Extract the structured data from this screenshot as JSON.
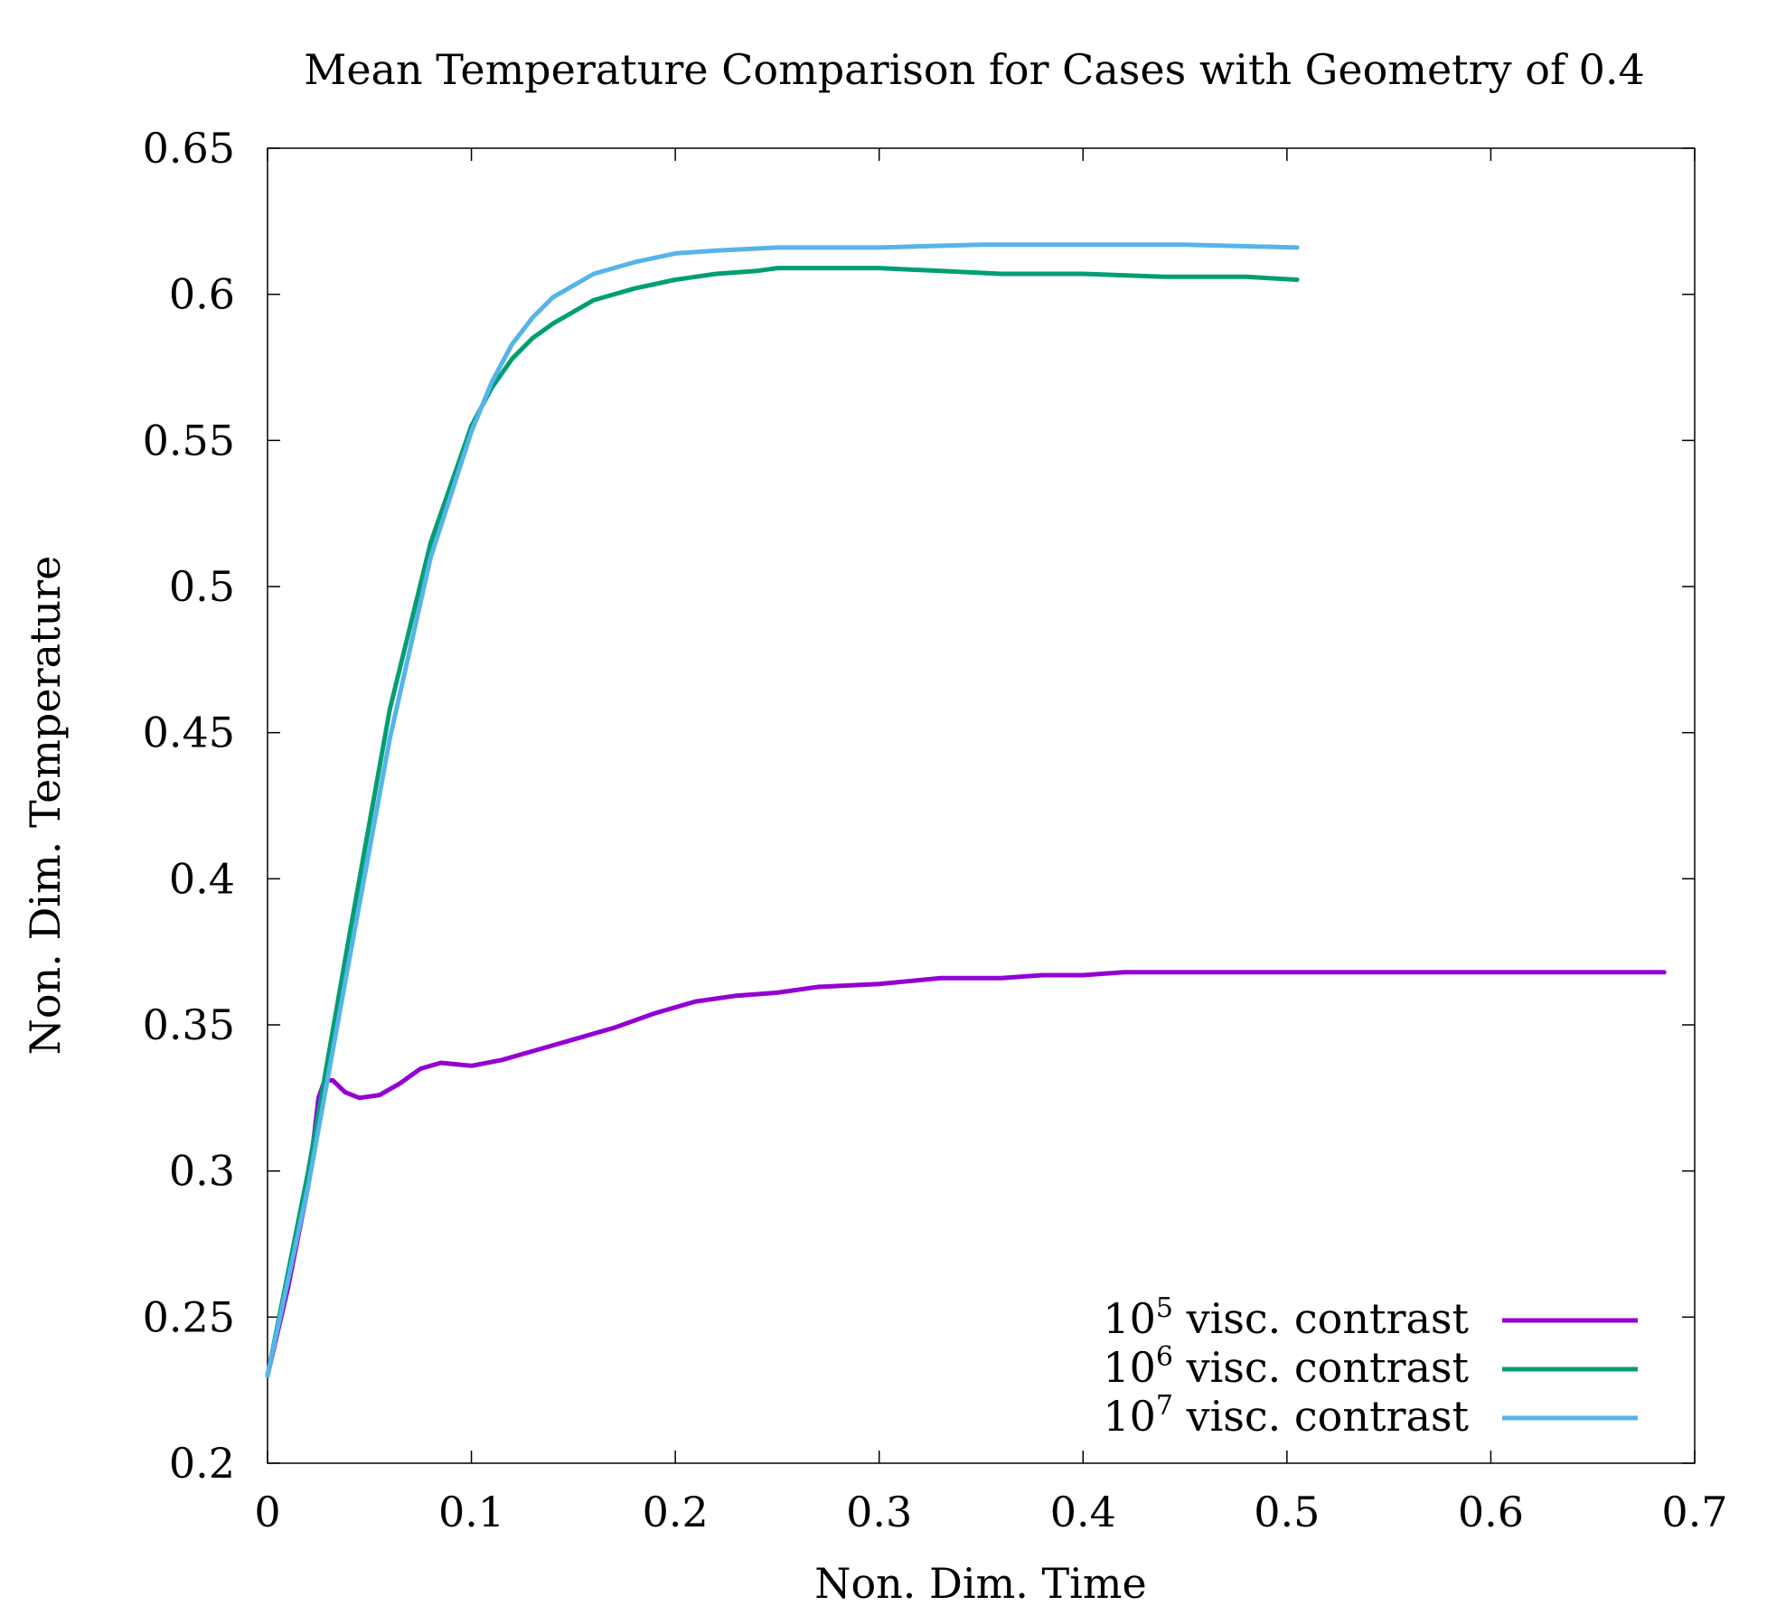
{
  "chart_data": {
    "type": "line",
    "title": "Mean Temperature Comparison for Cases with Geometry of 0.4",
    "xlabel": "Non. Dim. Time",
    "ylabel": "Non. Dim. Temperature",
    "xlim": [
      0,
      0.7
    ],
    "ylim": [
      0.2,
      0.65
    ],
    "x_ticks": [
      "0",
      "0.1",
      "0.2",
      "0.3",
      "0.4",
      "0.5",
      "0.6",
      "0.7"
    ],
    "y_ticks": [
      "0.2",
      "0.25",
      "0.3",
      "0.35",
      "0.4",
      "0.45",
      "0.5",
      "0.55",
      "0.6",
      "0.65"
    ],
    "grid": false,
    "legend_position": "bottom-right",
    "series": [
      {
        "name_base": "10",
        "name_exp": "5",
        "name_suffix": " visc. contrast",
        "color": "#9400d3",
        "points": [
          [
            0,
            0.23
          ],
          [
            0.01,
            0.26
          ],
          [
            0.02,
            0.295
          ],
          [
            0.025,
            0.325
          ],
          [
            0.028,
            0.331
          ],
          [
            0.032,
            0.331
          ],
          [
            0.038,
            0.327
          ],
          [
            0.045,
            0.325
          ],
          [
            0.055,
            0.326
          ],
          [
            0.065,
            0.33
          ],
          [
            0.075,
            0.335
          ],
          [
            0.085,
            0.337
          ],
          [
            0.1,
            0.336
          ],
          [
            0.115,
            0.338
          ],
          [
            0.13,
            0.341
          ],
          [
            0.15,
            0.345
          ],
          [
            0.17,
            0.349
          ],
          [
            0.19,
            0.354
          ],
          [
            0.21,
            0.358
          ],
          [
            0.23,
            0.36
          ],
          [
            0.25,
            0.361
          ],
          [
            0.27,
            0.363
          ],
          [
            0.3,
            0.364
          ],
          [
            0.33,
            0.366
          ],
          [
            0.36,
            0.366
          ],
          [
            0.38,
            0.367
          ],
          [
            0.4,
            0.367
          ],
          [
            0.42,
            0.368
          ],
          [
            0.45,
            0.368
          ],
          [
            0.47,
            0.368
          ],
          [
            0.5,
            0.368
          ],
          [
            0.53,
            0.368
          ],
          [
            0.56,
            0.368
          ],
          [
            0.6,
            0.368
          ],
          [
            0.65,
            0.368
          ],
          [
            0.685,
            0.368
          ]
        ]
      },
      {
        "name_base": "10",
        "name_exp": "6",
        "name_suffix": " visc. contrast",
        "color": "#009e73",
        "points": [
          [
            0,
            0.23
          ],
          [
            0.02,
            0.3
          ],
          [
            0.04,
            0.38
          ],
          [
            0.06,
            0.458
          ],
          [
            0.08,
            0.515
          ],
          [
            0.1,
            0.555
          ],
          [
            0.11,
            0.568
          ],
          [
            0.12,
            0.578
          ],
          [
            0.13,
            0.585
          ],
          [
            0.14,
            0.59
          ],
          [
            0.16,
            0.598
          ],
          [
            0.18,
            0.602
          ],
          [
            0.2,
            0.605
          ],
          [
            0.22,
            0.607
          ],
          [
            0.24,
            0.608
          ],
          [
            0.25,
            0.609
          ],
          [
            0.27,
            0.609
          ],
          [
            0.3,
            0.609
          ],
          [
            0.33,
            0.608
          ],
          [
            0.36,
            0.607
          ],
          [
            0.4,
            0.607
          ],
          [
            0.44,
            0.606
          ],
          [
            0.48,
            0.606
          ],
          [
            0.505,
            0.605
          ]
        ]
      },
      {
        "name_base": "10",
        "name_exp": "7",
        "name_suffix": " visc. contrast",
        "color": "#56b4e9",
        "points": [
          [
            0,
            0.23
          ],
          [
            0.02,
            0.295
          ],
          [
            0.04,
            0.372
          ],
          [
            0.06,
            0.448
          ],
          [
            0.08,
            0.51
          ],
          [
            0.1,
            0.553
          ],
          [
            0.11,
            0.57
          ],
          [
            0.12,
            0.583
          ],
          [
            0.13,
            0.592
          ],
          [
            0.14,
            0.599
          ],
          [
            0.16,
            0.607
          ],
          [
            0.18,
            0.611
          ],
          [
            0.2,
            0.614
          ],
          [
            0.22,
            0.615
          ],
          [
            0.25,
            0.616
          ],
          [
            0.3,
            0.616
          ],
          [
            0.35,
            0.617
          ],
          [
            0.4,
            0.617
          ],
          [
            0.45,
            0.617
          ],
          [
            0.505,
            0.616
          ]
        ]
      }
    ]
  }
}
